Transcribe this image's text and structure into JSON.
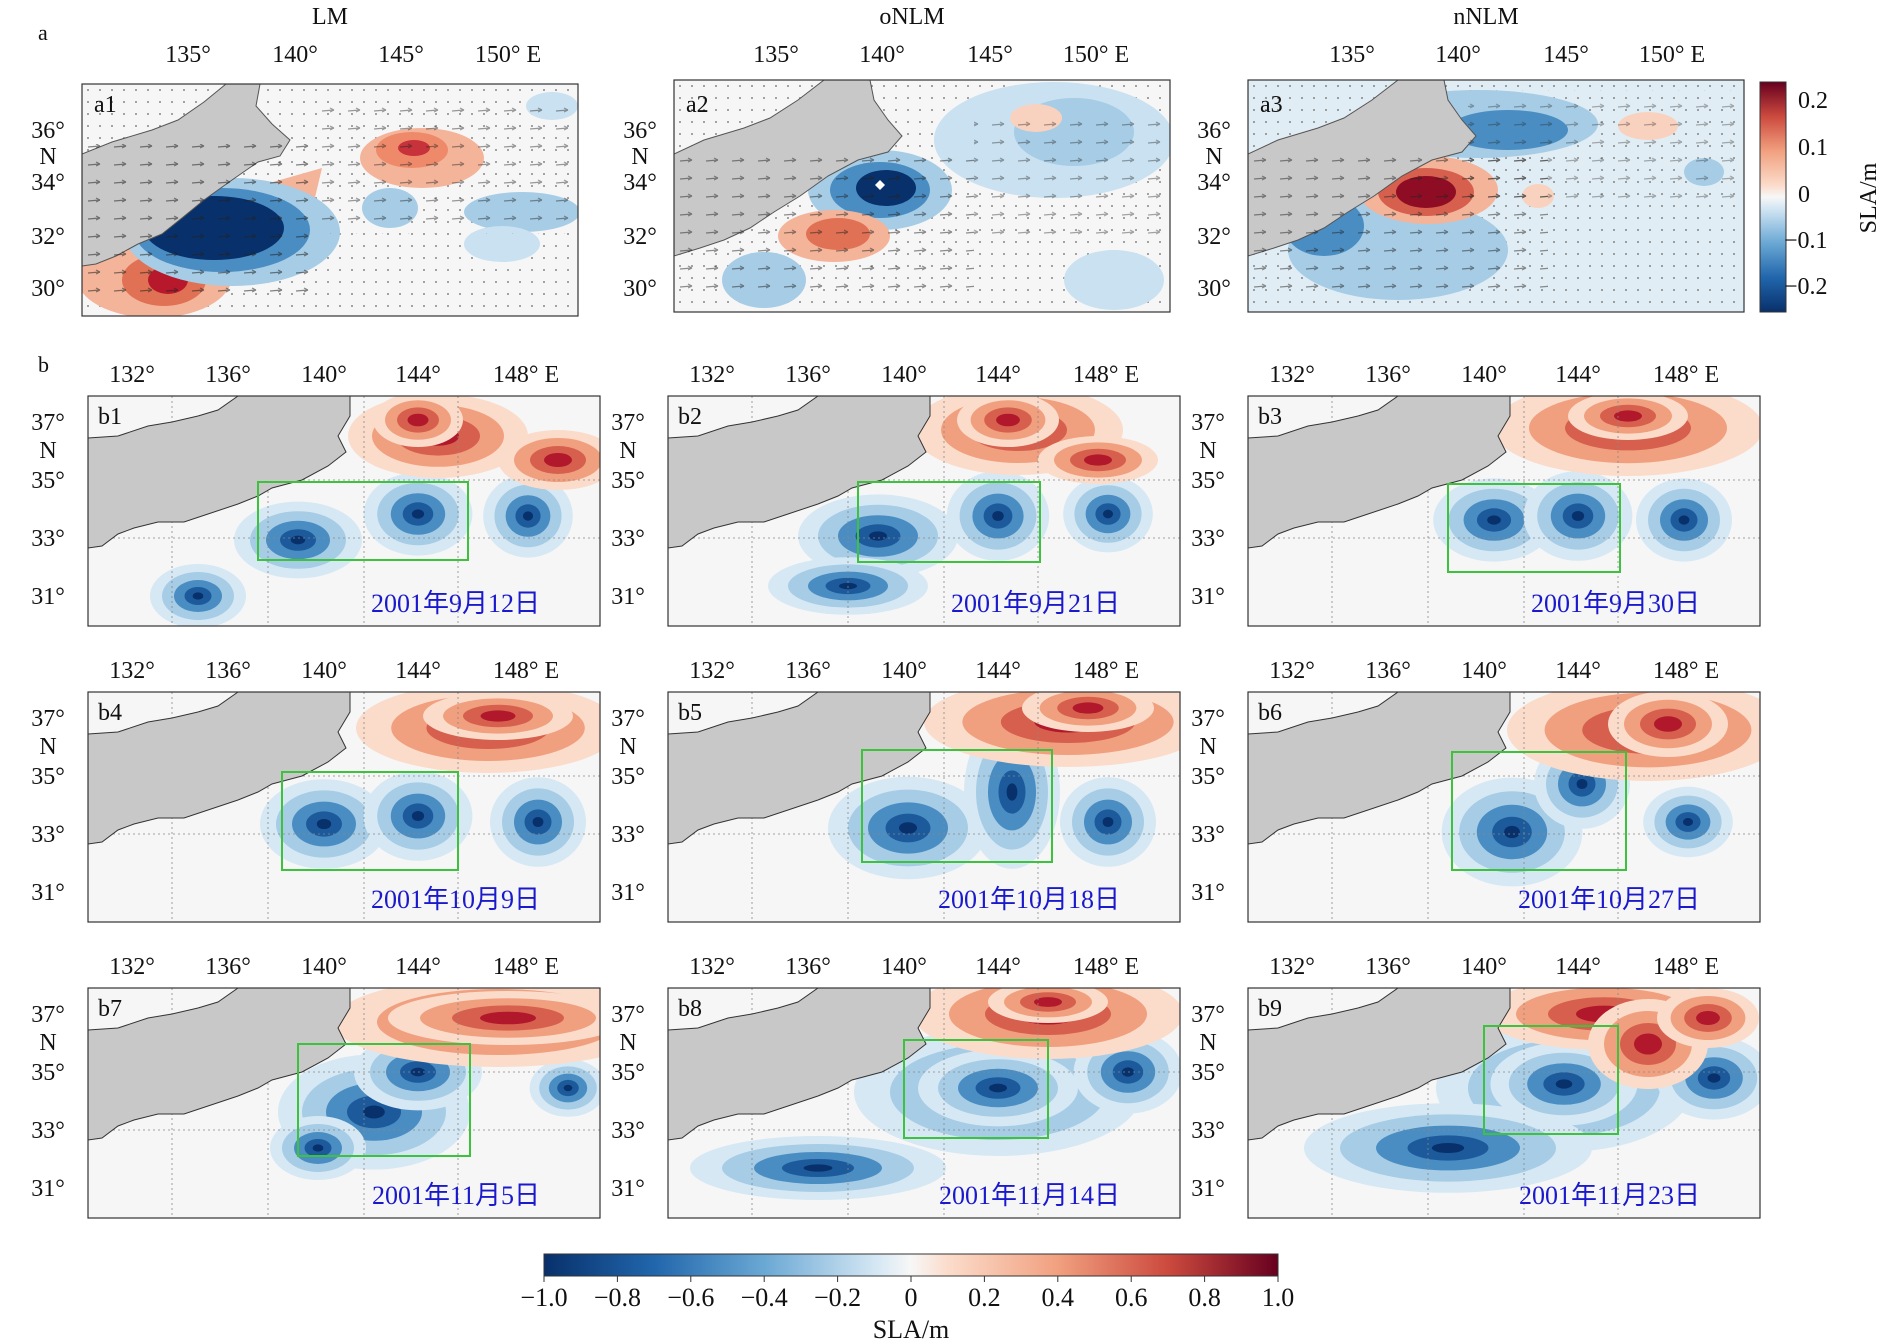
{
  "section_labels": {
    "a": "a",
    "b": "b"
  },
  "top_row": {
    "panels": [
      {
        "id": "a1",
        "title": "LM",
        "label": "a1"
      },
      {
        "id": "a2",
        "title": "oNLM",
        "label": "a2"
      },
      {
        "id": "a3",
        "title": "nNLM",
        "label": "a3"
      }
    ],
    "lon_ticks": [
      "135°",
      "140°",
      "145°",
      "150° E"
    ],
    "lat_ticks": [
      "36°",
      "34°",
      "32°",
      "30°"
    ],
    "lat_unit": "N"
  },
  "top_colorbar": {
    "ticks": [
      "0.2",
      "0.1",
      "0",
      "−0.1",
      "−0.2"
    ],
    "label": "SLA/m",
    "range": [
      -0.25,
      0.25
    ]
  },
  "grid_rows": {
    "lon_ticks": [
      "132°",
      "136°",
      "140°",
      "144°",
      "148° E"
    ],
    "lat_ticks": [
      "37°",
      "35°",
      "33°",
      "31°"
    ],
    "lat_unit": "N",
    "panels": [
      {
        "id": "b1",
        "label": "b1",
        "date": "2001年9月12日"
      },
      {
        "id": "b2",
        "label": "b2",
        "date": "2001年9月21日"
      },
      {
        "id": "b3",
        "label": "b3",
        "date": "2001年9月30日"
      },
      {
        "id": "b4",
        "label": "b4",
        "date": "2001年10月9日"
      },
      {
        "id": "b5",
        "label": "b5",
        "date": "2001年10月18日"
      },
      {
        "id": "b6",
        "label": "b6",
        "date": "2001年10月27日"
      },
      {
        "id": "b7",
        "label": "b7",
        "date": "2001年11月5日"
      },
      {
        "id": "b8",
        "label": "b8",
        "date": "2001年11月14日"
      },
      {
        "id": "b9",
        "label": "b9",
        "date": "2001年11月23日"
      }
    ]
  },
  "bottom_colorbar": {
    "ticks": [
      "−1.0",
      "−0.8",
      "−0.6",
      "−0.4",
      "−0.2",
      "0",
      "0.2",
      "0.4",
      "0.6",
      "0.8",
      "1.0"
    ],
    "label": "SLA/m",
    "range": [
      -1.0,
      1.0
    ]
  },
  "colors": {
    "land": "#c8c8c8",
    "ocean": "#f6f6f6",
    "box": "#3cc23c",
    "date_text": "#1a1acc"
  }
}
